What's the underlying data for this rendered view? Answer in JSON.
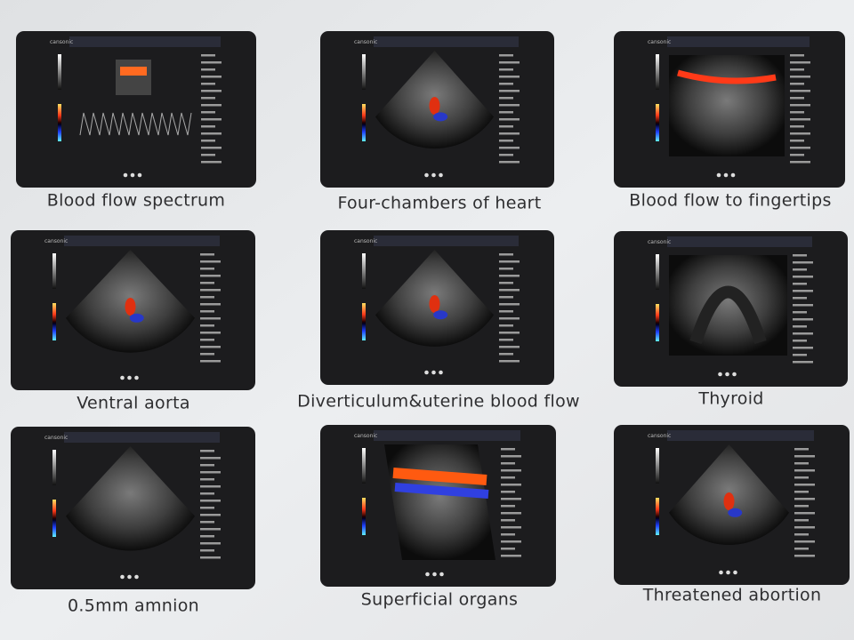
{
  "panels": [
    {
      "caption": "Blood flow spectrum",
      "brand": "cansonic"
    },
    {
      "caption": "Four-chambers of heart",
      "brand": "cansonic"
    },
    {
      "caption": "Blood flow to fingertips",
      "brand": "cansonic"
    },
    {
      "caption": "Ventral aorta",
      "brand": "cansonic"
    },
    {
      "caption": "Diverticulum&uterine blood flow",
      "brand": "cansonic"
    },
    {
      "caption": "Thyroid",
      "brand": "cansonic"
    },
    {
      "caption": "0.5mm amnion",
      "brand": "cansonic"
    },
    {
      "caption": "Superficial organs",
      "brand": "cansonic"
    },
    {
      "caption": "Threatened abortion",
      "brand": "cansonic"
    }
  ]
}
